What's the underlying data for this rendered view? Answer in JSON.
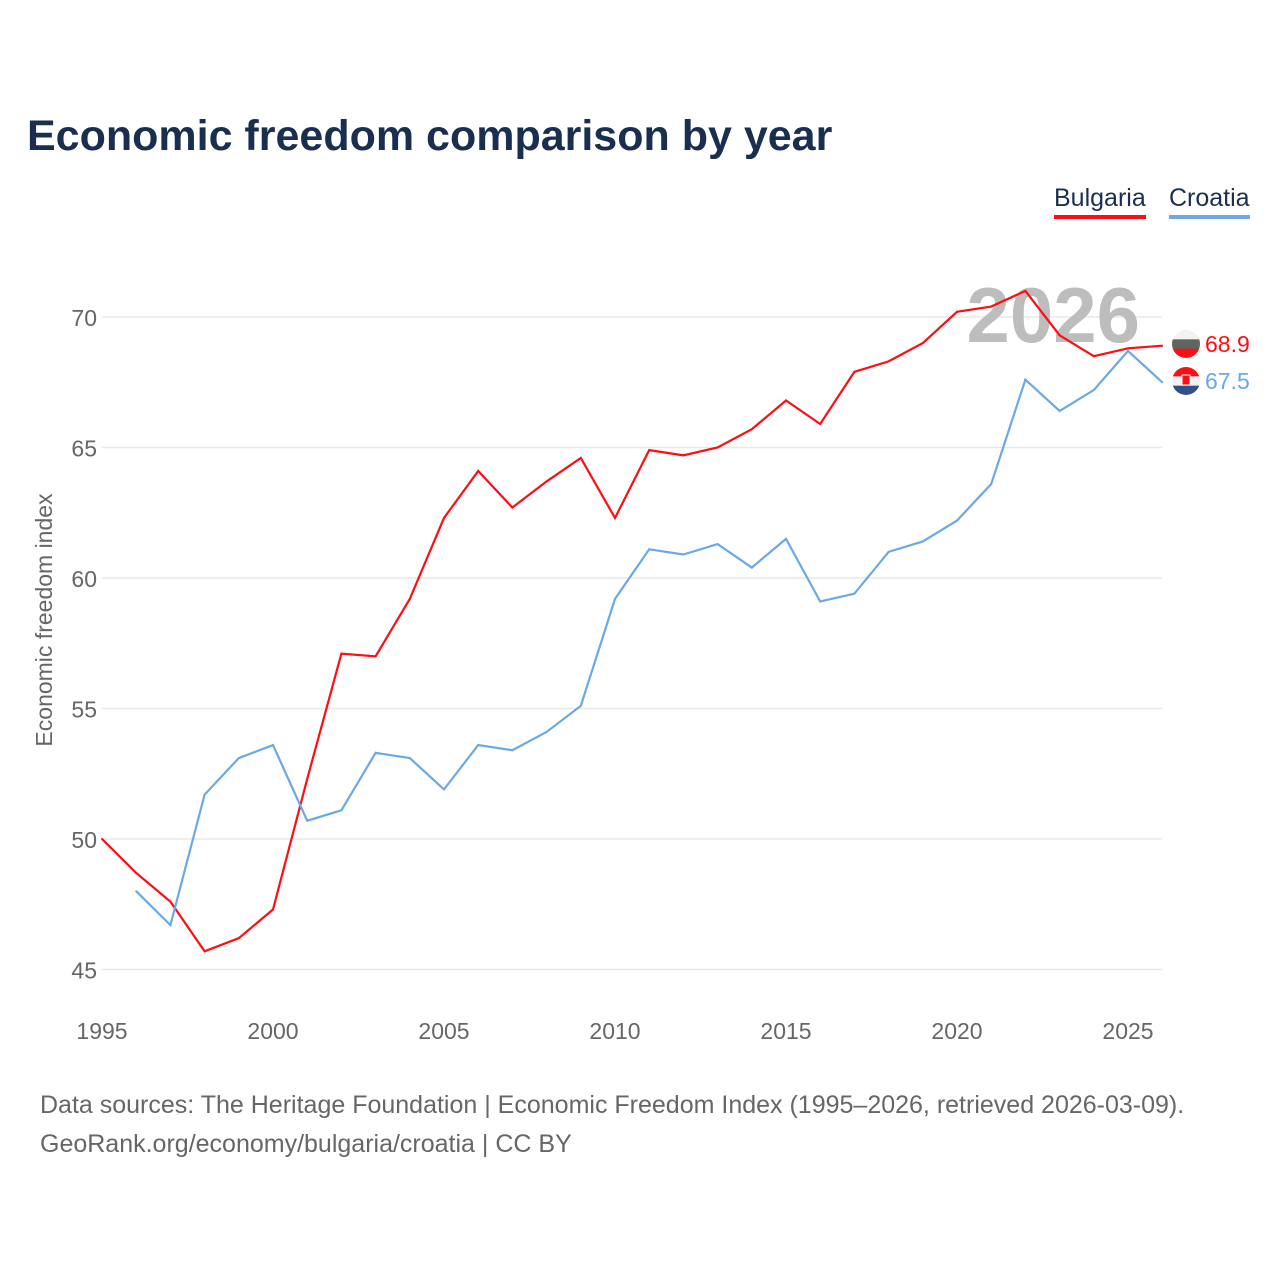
{
  "title": "Economic freedom comparison by year",
  "legend": [
    "Bulgaria",
    "Croatia"
  ],
  "footer": {
    "line1": "Data sources: The Heritage Foundation | Economic Freedom Index (1995–2026, retrieved 2026-03-09).",
    "line2": "GeoRank.org/economy/bulgaria/croatia | CC BY"
  },
  "chart_data": {
    "type": "line",
    "title": "Economic freedom comparison by year",
    "xlabel": "",
    "ylabel": "Economic freedom index",
    "xlim": [
      1995,
      2026
    ],
    "ylim": [
      45,
      71.5
    ],
    "xticks": [
      1995,
      2000,
      2005,
      2010,
      2015,
      2020,
      2025
    ],
    "yticks": [
      45,
      50,
      55,
      60,
      65,
      70
    ],
    "watermark_year": "2026",
    "series": [
      {
        "name": "Bulgaria",
        "color": "#ff0d12",
        "end_label": "68.9",
        "x": [
          1995,
          1996,
          1997,
          1998,
          1999,
          2000,
          2001,
          2002,
          2003,
          2004,
          2005,
          2006,
          2007,
          2008,
          2009,
          2010,
          2011,
          2012,
          2013,
          2014,
          2015,
          2016,
          2017,
          2018,
          2019,
          2020,
          2021,
          2022,
          2023,
          2024,
          2025,
          2026
        ],
        "y": [
          50.0,
          48.7,
          47.6,
          45.7,
          46.2,
          47.3,
          52.3,
          57.1,
          57.0,
          59.2,
          62.3,
          64.1,
          62.7,
          63.7,
          64.6,
          62.3,
          64.9,
          64.7,
          65.0,
          65.7,
          66.8,
          65.9,
          67.9,
          68.3,
          69.0,
          70.2,
          70.4,
          71.0,
          69.3,
          68.5,
          68.8,
          68.9
        ]
      },
      {
        "name": "Croatia",
        "color": "#6aa9e6",
        "end_label": "67.5",
        "x": [
          1996,
          1997,
          1998,
          1999,
          2000,
          2001,
          2002,
          2003,
          2004,
          2005,
          2006,
          2007,
          2008,
          2009,
          2010,
          2011,
          2012,
          2013,
          2014,
          2015,
          2016,
          2017,
          2018,
          2019,
          2020,
          2021,
          2022,
          2023,
          2024,
          2025,
          2026
        ],
        "y": [
          48.0,
          46.7,
          51.7,
          53.1,
          53.6,
          50.7,
          51.1,
          53.3,
          53.1,
          51.9,
          53.6,
          53.4,
          54.1,
          55.1,
          59.2,
          61.1,
          60.9,
          61.3,
          60.4,
          61.5,
          59.1,
          59.4,
          61.0,
          61.4,
          62.2,
          63.6,
          67.6,
          66.4,
          67.2,
          68.7,
          67.5
        ]
      }
    ]
  }
}
